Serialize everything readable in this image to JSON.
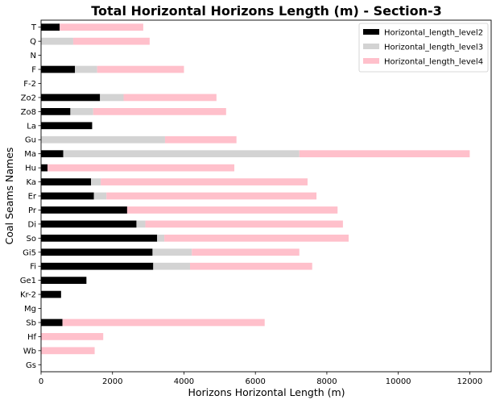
{
  "chart_data": {
    "type": "bar",
    "orientation": "horizontal",
    "stacked": true,
    "title": "Total Horizontal Horizons Length (m) - Section-3",
    "xlabel": "Horizons Horizontal Length (m)",
    "ylabel": "Coal Seams Names",
    "xlim": [
      0,
      12600
    ],
    "xticks": [
      0,
      2000,
      4000,
      6000,
      8000,
      10000,
      12000
    ],
    "grid": false,
    "legend_position": "top-right",
    "categories": [
      "T",
      "Q",
      "N",
      "F",
      "F-2",
      "Zo2",
      "Zo8",
      "La",
      "Gu",
      "Ma",
      "Hu",
      "Ka",
      "Er",
      "Pr",
      "Di",
      "So",
      "Gi5",
      "Fi",
      "Ge1",
      "Kr-2",
      "Mg",
      "Sb",
      "Hf",
      "Wb",
      "Gs"
    ],
    "series": [
      {
        "name": "Horizontal_length_level2",
        "color": "#000000",
        "values": [
          520,
          0,
          0,
          950,
          0,
          1650,
          820,
          1430,
          0,
          620,
          180,
          1400,
          1480,
          2410,
          2670,
          3250,
          3120,
          3140,
          1270,
          560,
          0,
          600,
          0,
          0,
          0
        ]
      },
      {
        "name": "Horizontal_length_level3",
        "color": "#d3d3d3",
        "values": [
          0,
          900,
          0,
          620,
          0,
          660,
          640,
          0,
          3470,
          6610,
          0,
          270,
          350,
          0,
          250,
          200,
          1100,
          1030,
          0,
          0,
          0,
          0,
          0,
          0,
          0
        ]
      },
      {
        "name": "Horizontal_length_level4",
        "color": "#ffc0cb",
        "values": [
          2340,
          2140,
          0,
          2430,
          0,
          2600,
          3720,
          0,
          2000,
          4770,
          5230,
          5790,
          5880,
          5890,
          5530,
          5160,
          3010,
          3420,
          0,
          0,
          0,
          5660,
          1740,
          1500,
          0
        ]
      }
    ]
  }
}
